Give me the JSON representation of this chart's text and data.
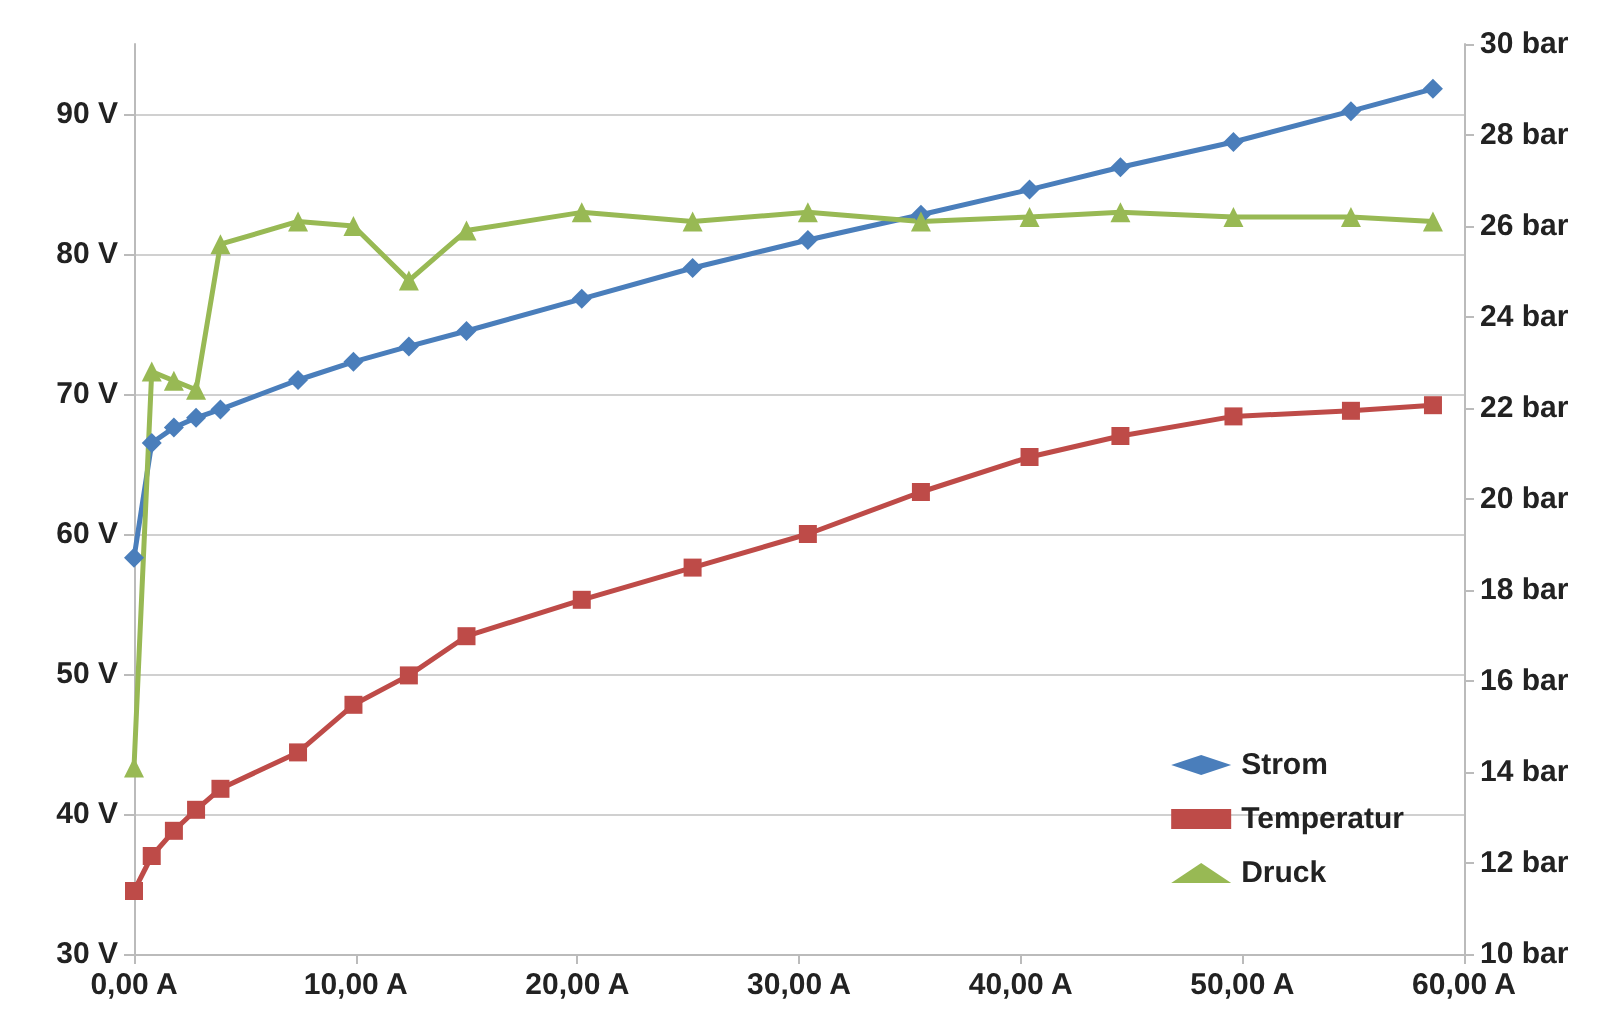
{
  "chart_data": {
    "type": "line",
    "x": [
      0,
      0.8,
      1.8,
      2.8,
      3.9,
      7.4,
      9.9,
      12.4,
      15.0,
      20.2,
      25.2,
      30.4,
      35.5,
      40.4,
      44.5,
      49.6,
      54.9,
      58.6
    ],
    "series": [
      {
        "name": "Strom",
        "color": "#4a7ebb",
        "marker": "diamond",
        "values": [
          58.3,
          66.5,
          67.6,
          68.3,
          68.9,
          71.0,
          72.3,
          73.4,
          74.5,
          76.8,
          79.0,
          81.0,
          82.8,
          84.6,
          86.2,
          88.0,
          90.2,
          91.8
        ]
      },
      {
        "name": "Temperatur",
        "color": "#be4b48",
        "marker": "square",
        "values": [
          34.5,
          37.0,
          38.8,
          40.3,
          41.8,
          44.4,
          47.8,
          49.9,
          52.7,
          55.3,
          57.6,
          60.0,
          63.0,
          65.5,
          67.0,
          68.4,
          68.8,
          69.2
        ]
      },
      {
        "name": "Druck",
        "color": "#98b954",
        "marker": "triangle",
        "axis": "y2",
        "values": [
          14.1,
          22.8,
          22.6,
          22.4,
          25.6,
          26.1,
          26.0,
          24.8,
          25.9,
          26.3,
          26.1,
          26.3,
          26.1,
          26.2,
          26.3,
          26.2,
          26.2,
          26.1
        ]
      }
    ],
    "xlim": [
      0,
      60
    ],
    "xticks": [
      {
        "value": 0,
        "label": "0,00 A"
      },
      {
        "value": 10,
        "label": "10,00 A"
      },
      {
        "value": 20,
        "label": "20,00 A"
      },
      {
        "value": 30,
        "label": "30,00 A"
      },
      {
        "value": 40,
        "label": "40,00 A"
      },
      {
        "value": 50,
        "label": "50,00 A"
      },
      {
        "value": 60,
        "label": "60,00 A"
      }
    ],
    "ylim": [
      30,
      95
    ],
    "yticks": [
      {
        "value": 30,
        "label": "30 V"
      },
      {
        "value": 40,
        "label": "40 V"
      },
      {
        "value": 50,
        "label": "50 V"
      },
      {
        "value": 60,
        "label": "60 V"
      },
      {
        "value": 70,
        "label": "70 V"
      },
      {
        "value": 80,
        "label": "80 V"
      },
      {
        "value": 90,
        "label": "90 V"
      }
    ],
    "y2lim": [
      10,
      30
    ],
    "y2ticks": [
      {
        "value": 10,
        "label": "10 bar"
      },
      {
        "value": 12,
        "label": "12 bar"
      },
      {
        "value": 14,
        "label": "14 bar"
      },
      {
        "value": 16,
        "label": "16 bar"
      },
      {
        "value": 18,
        "label": "18 bar"
      },
      {
        "value": 20,
        "label": "20 bar"
      },
      {
        "value": 22,
        "label": "22 bar"
      },
      {
        "value": 24,
        "label": "24 bar"
      },
      {
        "value": 26,
        "label": "26 bar"
      },
      {
        "value": 28,
        "label": "28 bar"
      },
      {
        "value": 30,
        "label": "30 bar"
      }
    ],
    "grid": "y",
    "legend": "bottom right",
    "line_style": "solid"
  }
}
